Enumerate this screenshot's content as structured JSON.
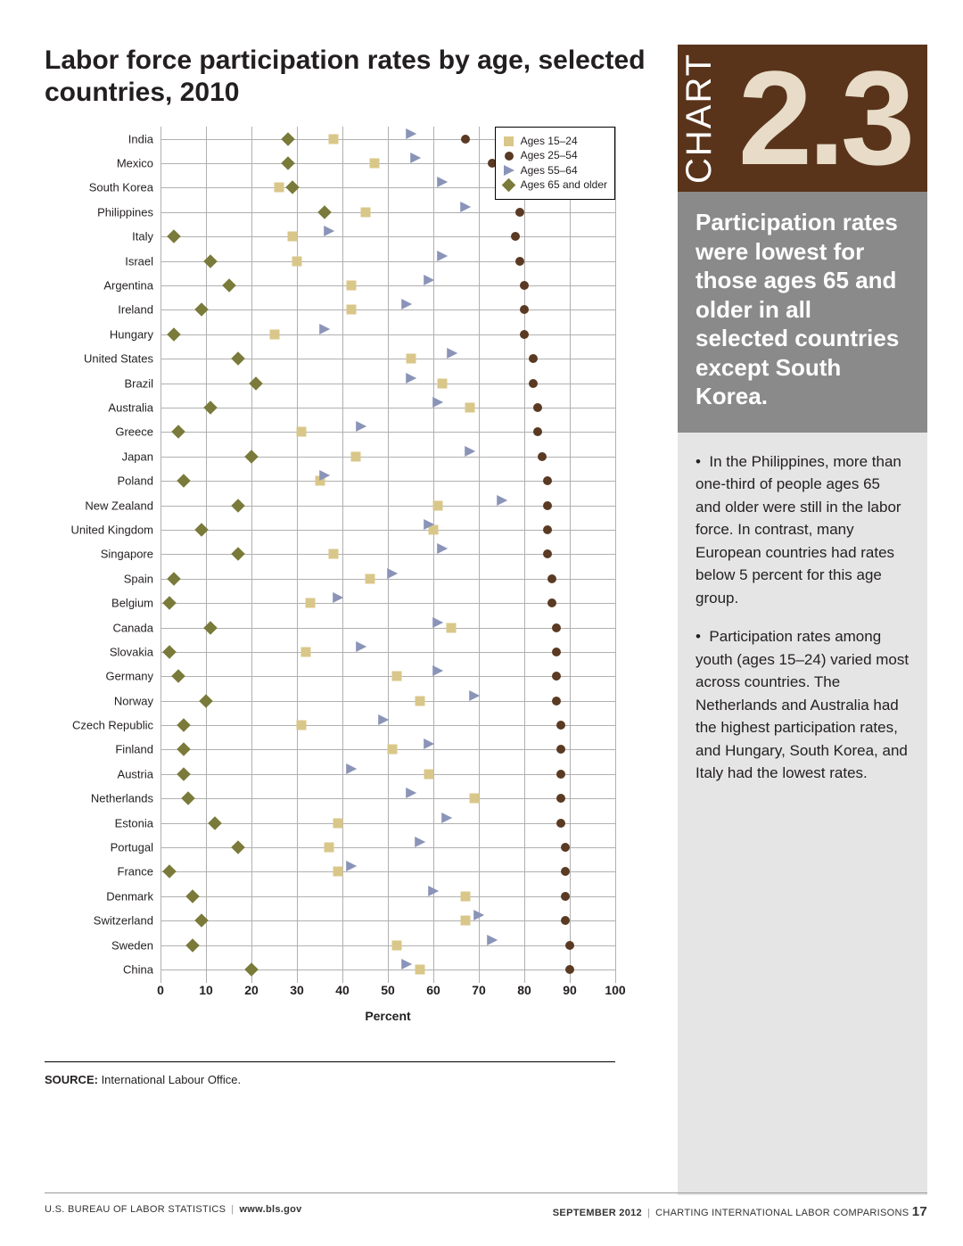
{
  "title": "Labor force participation rates by age, selected countries, 2010",
  "chart": {
    "type": "dot-strip",
    "xlabel": "Percent",
    "xlim": [
      0,
      100
    ],
    "xtick_step": 10,
    "xticks": [
      0,
      10,
      20,
      30,
      40,
      50,
      60,
      70,
      80,
      90,
      100
    ],
    "gridline_color": "#b0b0b0",
    "background_color": "#ffffff",
    "label_fontsize": 13,
    "axis_fontsize": 14,
    "series": [
      {
        "key": "a15_24",
        "label": "Ages 15–24",
        "marker": "square",
        "color": "#d9c78a"
      },
      {
        "key": "a25_54",
        "label": "Ages 25–54",
        "marker": "circle",
        "color": "#5a3a23"
      },
      {
        "key": "a55_64",
        "label": "Ages 55–64",
        "marker": "triangle",
        "color": "#8a94b8"
      },
      {
        "key": "a65_",
        "label": "Ages 65 and older",
        "marker": "diamond",
        "color": "#7a7a3a"
      }
    ],
    "countries": [
      {
        "name": "India",
        "a15_24": 38,
        "a25_54": 67,
        "a55_64": 56,
        "a65_": 28
      },
      {
        "name": "Mexico",
        "a15_24": 47,
        "a25_54": 73,
        "a55_64": 57,
        "a65_": 28
      },
      {
        "name": "South Korea",
        "a15_24": 26,
        "a25_54": 77,
        "a55_64": 63,
        "a65_": 29
      },
      {
        "name": "Philippines",
        "a15_24": 45,
        "a25_54": 79,
        "a55_64": 68,
        "a65_": 36
      },
      {
        "name": "Italy",
        "a15_24": 29,
        "a25_54": 78,
        "a55_64": 38,
        "a65_": 3
      },
      {
        "name": "Israel",
        "a15_24": 30,
        "a25_54": 79,
        "a55_64": 63,
        "a65_": 11
      },
      {
        "name": "Argentina",
        "a15_24": 42,
        "a25_54": 80,
        "a55_64": 60,
        "a65_": 15
      },
      {
        "name": "Ireland",
        "a15_24": 42,
        "a25_54": 80,
        "a55_64": 55,
        "a65_": 9
      },
      {
        "name": "Hungary",
        "a15_24": 25,
        "a25_54": 80,
        "a55_64": 37,
        "a65_": 3
      },
      {
        "name": "United States",
        "a15_24": 55,
        "a25_54": 82,
        "a55_64": 65,
        "a65_": 17
      },
      {
        "name": "Brazil",
        "a15_24": 62,
        "a25_54": 82,
        "a55_64": 56,
        "a65_": 21
      },
      {
        "name": "Australia",
        "a15_24": 68,
        "a25_54": 83,
        "a55_64": 62,
        "a65_": 11
      },
      {
        "name": "Greece",
        "a15_24": 31,
        "a25_54": 83,
        "a55_64": 45,
        "a65_": 4
      },
      {
        "name": "Japan",
        "a15_24": 43,
        "a25_54": 84,
        "a55_64": 69,
        "a65_": 20
      },
      {
        "name": "Poland",
        "a15_24": 35,
        "a25_54": 85,
        "a55_64": 37,
        "a65_": 5
      },
      {
        "name": "New Zealand",
        "a15_24": 61,
        "a25_54": 85,
        "a55_64": 76,
        "a65_": 17
      },
      {
        "name": "United Kingdom",
        "a15_24": 60,
        "a25_54": 85,
        "a55_64": 60,
        "a65_": 9
      },
      {
        "name": "Singapore",
        "a15_24": 38,
        "a25_54": 85,
        "a55_64": 63,
        "a65_": 17
      },
      {
        "name": "Spain",
        "a15_24": 46,
        "a25_54": 86,
        "a55_64": 52,
        "a65_": 3
      },
      {
        "name": "Belgium",
        "a15_24": 33,
        "a25_54": 86,
        "a55_64": 40,
        "a65_": 2
      },
      {
        "name": "Canada",
        "a15_24": 64,
        "a25_54": 87,
        "a55_64": 62,
        "a65_": 11
      },
      {
        "name": "Slovakia",
        "a15_24": 32,
        "a25_54": 87,
        "a55_64": 45,
        "a65_": 2
      },
      {
        "name": "Germany",
        "a15_24": 52,
        "a25_54": 87,
        "a55_64": 62,
        "a65_": 4
      },
      {
        "name": "Norway",
        "a15_24": 57,
        "a25_54": 87,
        "a55_64": 70,
        "a65_": 10
      },
      {
        "name": "Czech Republic",
        "a15_24": 31,
        "a25_54": 88,
        "a55_64": 50,
        "a65_": 5
      },
      {
        "name": "Finland",
        "a15_24": 51,
        "a25_54": 88,
        "a55_64": 60,
        "a65_": 5
      },
      {
        "name": "Austria",
        "a15_24": 59,
        "a25_54": 88,
        "a55_64": 43,
        "a65_": 5
      },
      {
        "name": "Netherlands",
        "a15_24": 69,
        "a25_54": 88,
        "a55_64": 56,
        "a65_": 6
      },
      {
        "name": "Estonia",
        "a15_24": 39,
        "a25_54": 88,
        "a55_64": 64,
        "a65_": 12
      },
      {
        "name": "Portugal",
        "a15_24": 37,
        "a25_54": 89,
        "a55_64": 58,
        "a65_": 17
      },
      {
        "name": "France",
        "a15_24": 39,
        "a25_54": 89,
        "a55_64": 43,
        "a65_": 2
      },
      {
        "name": "Denmark",
        "a15_24": 67,
        "a25_54": 89,
        "a55_64": 61,
        "a65_": 7
      },
      {
        "name": "Switzerland",
        "a15_24": 67,
        "a25_54": 89,
        "a55_64": 71,
        "a65_": 9
      },
      {
        "name": "Sweden",
        "a15_24": 52,
        "a25_54": 90,
        "a55_64": 74,
        "a65_": 7
      },
      {
        "name": "China",
        "a15_24": 57,
        "a25_54": 90,
        "a55_64": 55,
        "a65_": 20
      }
    ]
  },
  "source_label": "SOURCE:",
  "source_text": " International Labour Office.",
  "sidebar": {
    "chart_word": "CHART",
    "chart_num": "2.3",
    "callout": "Participation rates were lowest for those ages 65 and older in all selected countries except South Korea.",
    "bullets": [
      "In the Philippines, more than one-third of people ages 65 and older were still in the labor force. In contrast, many European countries had rates below 5 percent for this age group.",
      "Participation rates among youth (ages 15–24) varied most across countries. The Netherlands and Australia had the highest participation rates, and Hungary, South Korea, and Italy had the lowest rates."
    ]
  },
  "footer": {
    "left_org": "U.S. BUREAU OF LABOR STATISTICS",
    "left_url": "www.bls.gov",
    "right_date": "SEPTEMBER 2012",
    "right_pub": "CHARTING INTERNATIONAL LABOR COMPARISONS",
    "page_num": "17"
  }
}
